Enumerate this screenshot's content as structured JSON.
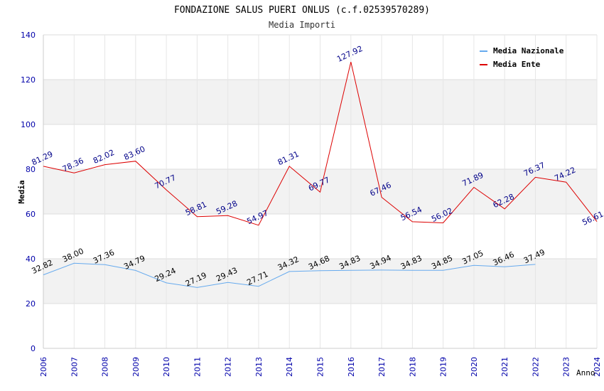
{
  "chart_data": {
    "type": "line",
    "title": "FONDAZIONE SALUS PUERI ONLUS (c.f.02539570289)",
    "subtitle": "Media Importi",
    "xlabel": "Anno",
    "ylabel": "Media",
    "ylim": [
      0,
      140
    ],
    "yticks": [
      "0",
      "20",
      "40",
      "60",
      "80",
      "100",
      "120",
      "140"
    ],
    "ytick_values": [
      0,
      20,
      40,
      60,
      80,
      100,
      120,
      140
    ],
    "x": [
      "2006",
      "2007",
      "2008",
      "2009",
      "2010",
      "2011",
      "2012",
      "2013",
      "2014",
      "2015",
      "2016",
      "2017",
      "2018",
      "2019",
      "2020",
      "2021",
      "2022",
      "2023",
      "2024"
    ],
    "legend_position": "top-right",
    "grid": "horizontal bands",
    "series": [
      {
        "name": "Media Nazionale",
        "color": "#66aaee",
        "label_color": "#000000",
        "values": [
          32.82,
          38.0,
          37.36,
          34.79,
          29.24,
          27.19,
          29.43,
          27.71,
          34.32,
          34.68,
          34.83,
          34.94,
          34.83,
          34.85,
          37.05,
          36.46,
          37.49,
          null,
          null
        ],
        "labels": [
          "32.82",
          "38.00",
          "37.36",
          "34.79",
          "29.24",
          "27.19",
          "29.43",
          "27.71",
          "34.32",
          "34.68",
          "34.83",
          "34.94",
          "34.83",
          "34.85",
          "37.05",
          "36.46",
          "37.49",
          null,
          null
        ]
      },
      {
        "name": "Media Ente",
        "color": "#dd0000",
        "label_color": "#000088",
        "values": [
          81.29,
          78.36,
          82.02,
          83.6,
          70.77,
          58.81,
          59.28,
          54.97,
          81.31,
          69.77,
          127.92,
          67.46,
          56.54,
          56.02,
          71.89,
          62.28,
          76.37,
          74.22,
          56.61
        ],
        "labels": [
          "81.29",
          "78.36",
          "82.02",
          "83.60",
          "70.77",
          "58.81",
          "59.28",
          "54.97",
          "81.31",
          "69.77",
          "127.92",
          "67.46",
          "56.54",
          "56.02",
          "71.89",
          "62.28",
          "76.37",
          "74.22",
          "56.61"
        ]
      }
    ]
  }
}
